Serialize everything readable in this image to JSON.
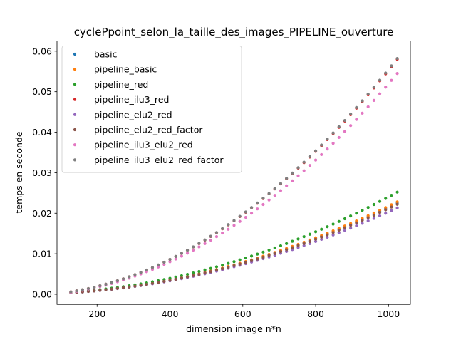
{
  "chart_data": {
    "type": "scatter",
    "title": "cyclePpoint_selon_la_taille_des_images_PIPELINE_ouverture",
    "xlabel": "dimension image n*n",
    "ylabel": "temps en seconde",
    "xlim": [
      90,
      1060
    ],
    "ylim": [
      -0.0025,
      0.0625
    ],
    "xticks": [
      200,
      400,
      600,
      800,
      1000
    ],
    "xtick_labels": [
      "200",
      "400",
      "600",
      "800",
      "1000"
    ],
    "yticks": [
      0.0,
      0.01,
      0.02,
      0.03,
      0.04,
      0.05,
      0.06
    ],
    "ytick_labels": [
      "0.00",
      "0.01",
      "0.02",
      "0.03",
      "0.04",
      "0.05",
      "0.06"
    ],
    "legend_position": "top-left",
    "grid": false,
    "x": {
      "start": 128,
      "end": 1024,
      "step": 16
    },
    "series": [
      {
        "name": "basic",
        "color": "#1f77b4",
        "y_at_start": 0.0004,
        "y_at_end": 0.0225
      },
      {
        "name": "pipeline_basic",
        "color": "#ff7f0e",
        "y_at_start": 0.0004,
        "y_at_end": 0.0228
      },
      {
        "name": "pipeline_red",
        "color": "#2ca02c",
        "y_at_start": 0.0005,
        "y_at_end": 0.0252
      },
      {
        "name": "pipeline_ilu3_red",
        "color": "#d62728",
        "y_at_start": 0.0006,
        "y_at_end": 0.058
      },
      {
        "name": "pipeline_elu2_red",
        "color": "#9467bd",
        "y_at_start": 0.0004,
        "y_at_end": 0.0213
      },
      {
        "name": "pipeline_elu2_red_factor",
        "color": "#8c564b",
        "y_at_start": 0.0004,
        "y_at_end": 0.0222
      },
      {
        "name": "pipeline_ilu3_elu2_red",
        "color": "#e377c2",
        "y_at_start": 0.0005,
        "y_at_end": 0.0545
      },
      {
        "name": "pipeline_ilu3_elu2_red_factor",
        "color": "#7f7f7f",
        "y_at_start": 0.0006,
        "y_at_end": 0.0582
      }
    ]
  }
}
